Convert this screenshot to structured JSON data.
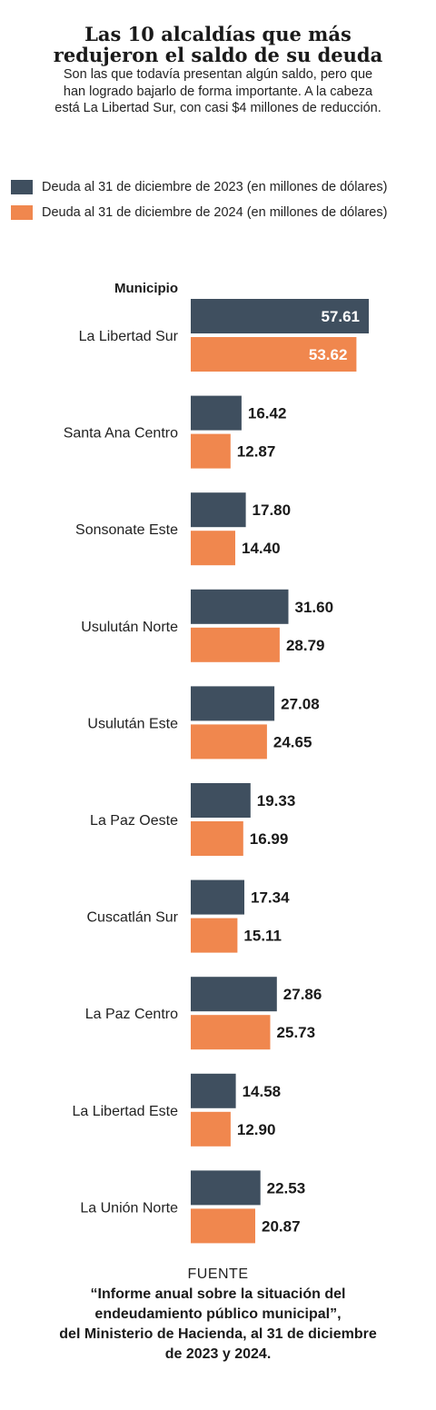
{
  "title_lines": [
    "Las 10 alcaldías que más",
    "redujeron el saldo de su deuda"
  ],
  "subtitle": "Son las que todavía presentan algún saldo, pero que han logrado bajarlo de forma importante. A la cabeza está La Libertad Sur, con casi $4 millones de reducción.",
  "colors": {
    "s2023": "#3f4f5f",
    "s2024": "#f0874e"
  },
  "legend": [
    {
      "label": "Deuda al 31 de diciembre de 2023 (en millones de dólares)",
      "color": "#3f4f5f"
    },
    {
      "label": "Deuda al 31 de diciembre de 2024 (en millones de dólares)",
      "color": "#f0874e"
    }
  ],
  "column_header": "Municipio",
  "chart_data": {
    "type": "bar",
    "orientation": "horizontal",
    "categories": [
      "La Libertad Sur",
      "Santa Ana Centro",
      "Sonsonate Este",
      "Usulután Norte",
      "Usulután Este",
      "La Paz Oeste",
      "Cuscatlán Sur",
      "La Paz Centro",
      "La Libertad Este",
      "La Unión Norte"
    ],
    "series": [
      {
        "name": "Deuda al 31 de diciembre de 2023 (en millones de dólares)",
        "values": [
          57.61,
          16.42,
          17.8,
          31.6,
          27.08,
          19.33,
          17.34,
          27.86,
          14.58,
          22.53
        ]
      },
      {
        "name": "Deuda al 31 de diciembre de 2024 (en millones de dólares)",
        "values": [
          53.62,
          12.87,
          14.4,
          28.79,
          24.65,
          16.99,
          15.11,
          25.73,
          12.9,
          20.87
        ]
      }
    ],
    "value_labels": {
      "s2023": [
        "57.61",
        "16.42",
        "17.80",
        "31.60",
        "27.08",
        "19.33",
        "17.34",
        "27.86",
        "14.58",
        "22.53"
      ],
      "s2024": [
        "53.62",
        "12.87",
        "14.40",
        "28.79",
        "24.65",
        "16.99",
        "15.11",
        "25.73",
        "12.90",
        "20.87"
      ]
    },
    "xlim": [
      0,
      57.61
    ],
    "grid": false,
    "legend_position": "top-left"
  },
  "source": {
    "label": "FUENTE",
    "lines": [
      "“Informe anual sobre la situación del",
      "endeudamiento público municipal”,",
      "del Ministerio de Hacienda, al 31 de diciembre",
      "de 2023 y 2024."
    ]
  }
}
